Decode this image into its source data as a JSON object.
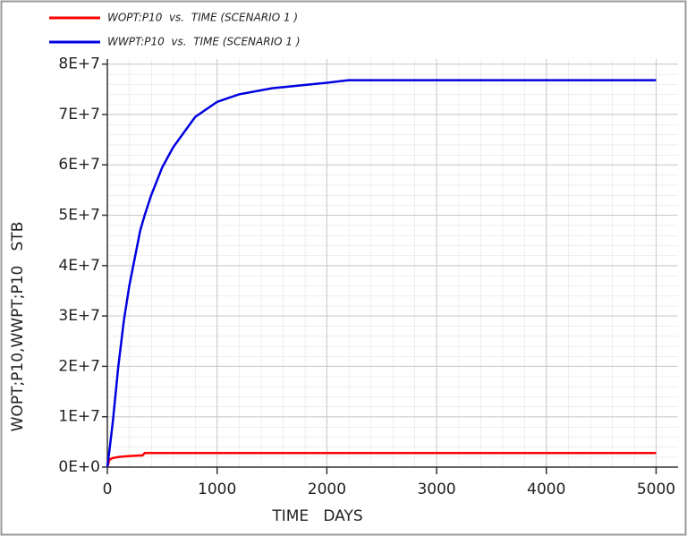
{
  "chart_data": {
    "type": "line",
    "xlabel": "TIME   DAYS",
    "ylabel": "WOPT;P10,WWPT;P10   STB",
    "x": [
      0,
      20,
      50,
      100,
      150,
      200,
      300,
      320,
      340,
      400,
      500,
      600,
      800,
      1000,
      1200,
      1500,
      2000,
      2200,
      3000,
      5000
    ],
    "series": [
      {
        "name": "WOPT:P10  vs.  TIME (SCENARIO 1 )",
        "color": "#ff0000",
        "values": [
          0,
          1500000,
          1800000,
          2000000,
          2100000,
          2200000,
          2300000,
          2300000,
          2800000,
          2800000,
          2800000,
          2800000,
          2800000,
          2800000,
          2800000,
          2800000,
          2800000,
          2800000,
          2800000,
          2800000
        ]
      },
      {
        "name": "WWPT:P10  vs.  TIME (SCENARIO 1 )",
        "color": "#0000e0",
        "values": [
          0,
          3500000,
          9000000,
          20000000,
          29000000,
          36000000,
          47000000,
          48500000,
          50000000,
          54000000,
          59500000,
          63500000,
          69500000,
          72500000,
          74000000,
          75200000,
          76300000,
          76800000,
          76800000,
          76800000
        ]
      }
    ],
    "xlim": [
      0,
      5200
    ],
    "xticks": [
      0,
      1000,
      2000,
      3000,
      4000,
      5000
    ],
    "ylim": [
      0,
      81000000
    ],
    "yticks": [
      {
        "value": 0,
        "label": "0E+0"
      },
      {
        "value": 10000000,
        "label": "1E+7"
      },
      {
        "value": 20000000,
        "label": "2E+7"
      },
      {
        "value": 30000000,
        "label": "3E+7"
      },
      {
        "value": 40000000,
        "label": "4E+7"
      },
      {
        "value": 50000000,
        "label": "5E+7"
      },
      {
        "value": 60000000,
        "label": "6E+7"
      },
      {
        "value": 70000000,
        "label": "7E+7"
      },
      {
        "value": 80000000,
        "label": "8E+7"
      }
    ],
    "grid": true,
    "legend": "top-left"
  }
}
